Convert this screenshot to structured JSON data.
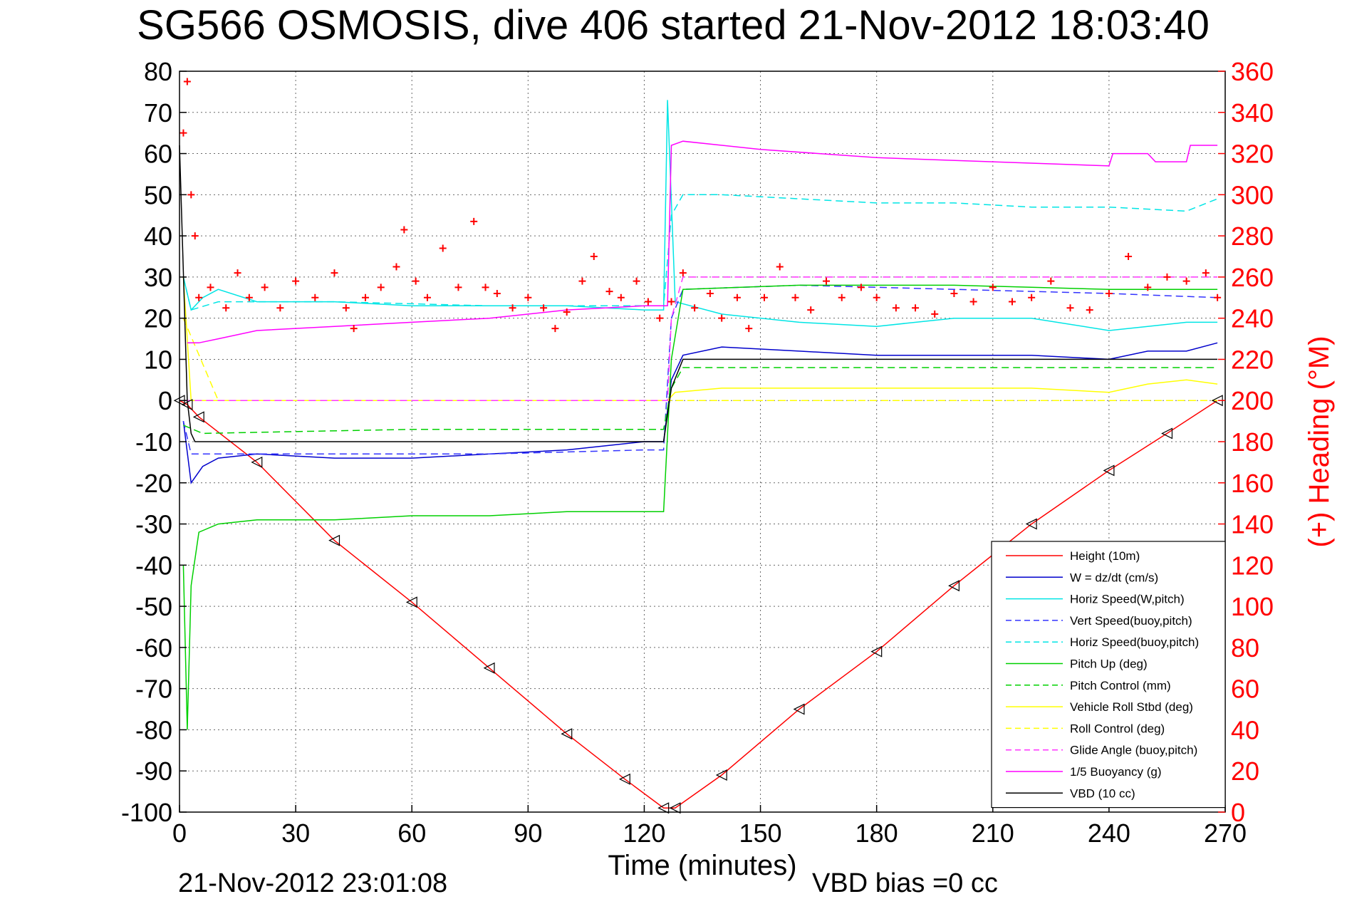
{
  "chart_data": {
    "type": "line",
    "title": "SG566 OSMOSIS, dive 406 started 21-Nov-2012 18:03:40",
    "xlabel": "Time (minutes)",
    "ylabel": "",
    "y2label": "(+) Heading (°M)",
    "xlim": [
      0,
      270
    ],
    "ylim": [
      -100,
      80
    ],
    "y2lim": [
      0,
      360
    ],
    "xticks": [
      0,
      30,
      60,
      90,
      120,
      150,
      180,
      210,
      240,
      270
    ],
    "yticks": [
      -100,
      -90,
      -80,
      -70,
      -60,
      -50,
      -40,
      -30,
      -20,
      -10,
      0,
      10,
      20,
      30,
      40,
      50,
      60,
      70,
      80
    ],
    "y2ticks": [
      0,
      20,
      40,
      60,
      80,
      100,
      120,
      140,
      160,
      180,
      200,
      220,
      240,
      260,
      280,
      300,
      320,
      340,
      360
    ],
    "grid": true,
    "legend_position": "lower-right",
    "footer_left": "21-Nov-2012 23:01:08",
    "footer_right": "VBD bias =0 cc",
    "series": [
      {
        "name": "Height (10m)",
        "color": "#ff0000",
        "style": "solid",
        "x": [
          0,
          2,
          5,
          20,
          40,
          60,
          80,
          100,
          115,
          125,
          128,
          140,
          160,
          180,
          200,
          220,
          240,
          255,
          268
        ],
        "y": [
          0,
          -1,
          -4,
          -15,
          -34,
          -49,
          -65,
          -81,
          -92,
          -99,
          -99,
          -91,
          -75,
          -61,
          -45,
          -30,
          -17,
          -8,
          0
        ]
      },
      {
        "name": "W = dz/dt (cm/s)",
        "color": "#0000cc",
        "style": "solid",
        "x": [
          1,
          3,
          6,
          10,
          20,
          40,
          60,
          80,
          100,
          120,
          125,
          127,
          130,
          140,
          160,
          180,
          200,
          220,
          240,
          250,
          260,
          268
        ],
        "y": [
          -5,
          -20,
          -16,
          -14,
          -13,
          -14,
          -14,
          -13,
          -12,
          -10,
          -10,
          5,
          11,
          13,
          12,
          11,
          11,
          11,
          10,
          12,
          12,
          14
        ]
      },
      {
        "name": "Horiz Speed(W,pitch)",
        "color": "#00e5e5",
        "style": "solid",
        "x": [
          1,
          3,
          6,
          10,
          20,
          40,
          60,
          80,
          100,
          120,
          125,
          126,
          128,
          140,
          160,
          180,
          200,
          220,
          240,
          250,
          260,
          268
        ],
        "y": [
          30,
          22,
          25,
          27,
          24,
          24,
          23,
          23,
          23,
          22,
          22,
          73,
          24,
          21,
          19,
          18,
          20,
          20,
          17,
          18,
          19,
          19
        ]
      },
      {
        "name": "Vert Speed(buoy,pitch)",
        "color": "#3333ff",
        "style": "dashed",
        "x": [
          1,
          3,
          10,
          40,
          80,
          120,
          125,
          127,
          130,
          160,
          200,
          240,
          268
        ],
        "y": [
          -5,
          -13,
          -13,
          -13,
          -13,
          -12,
          -12,
          20,
          27,
          28,
          27,
          26,
          25
        ]
      },
      {
        "name": "Horiz Speed(buoy,pitch)",
        "color": "#00e5e5",
        "style": "dashed",
        "x": [
          1,
          3,
          10,
          40,
          80,
          120,
          125,
          127,
          130,
          140,
          160,
          180,
          200,
          220,
          240,
          260,
          268
        ],
        "y": [
          30,
          22,
          24,
          24,
          23,
          23,
          23,
          45,
          50,
          50,
          49,
          48,
          48,
          47,
          47,
          46,
          49
        ]
      },
      {
        "name": "Pitch Up (deg)",
        "color": "#00d000",
        "style": "solid",
        "x": [
          1,
          2,
          3,
          5,
          10,
          20,
          40,
          60,
          80,
          100,
          120,
          125,
          127,
          130,
          160,
          200,
          240,
          268
        ],
        "y": [
          -40,
          -80,
          -45,
          -32,
          -30,
          -29,
          -29,
          -28,
          -28,
          -27,
          -27,
          -27,
          10,
          27,
          28,
          28,
          27,
          27
        ]
      },
      {
        "name": "Pitch Control (mm)",
        "color": "#00d000",
        "style": "dashed",
        "x": [
          1,
          6,
          60,
          125,
          127,
          130,
          268
        ],
        "y": [
          -6,
          -8,
          -7,
          -7,
          3,
          8,
          8
        ]
      },
      {
        "name": "Vehicle Roll Stbd (deg)",
        "color": "#ffff00",
        "style": "solid",
        "x": [
          1,
          3,
          6,
          10,
          20,
          40,
          60,
          80,
          100,
          120,
          126,
          128,
          140,
          160,
          180,
          200,
          220,
          240,
          250,
          260,
          268
        ],
        "y": [
          30,
          0,
          0,
          0,
          0,
          0,
          0,
          0,
          0,
          0,
          0,
          2,
          3,
          3,
          3,
          3,
          3,
          2,
          4,
          5,
          4
        ]
      },
      {
        "name": "Roll Control (deg)",
        "color": "#ffff00",
        "style": "dashed",
        "x": [
          1,
          10,
          60,
          120,
          126,
          130,
          200,
          268
        ],
        "y": [
          20,
          0,
          0,
          0,
          0,
          0,
          0,
          0
        ]
      },
      {
        "name": "Glide Angle (buoy,pitch)",
        "color": "#ff33ff",
        "style": "dashed",
        "x": [
          1,
          10,
          60,
          120,
          126,
          127,
          130,
          268
        ],
        "y": [
          0,
          0,
          0,
          0,
          0,
          20,
          30,
          30
        ]
      },
      {
        "name": "1/5 Buoyancy (g)",
        "color": "#ff00ff",
        "style": "solid",
        "x": [
          2,
          5,
          10,
          20,
          40,
          60,
          80,
          100,
          120,
          126,
          127,
          130,
          150,
          180,
          210,
          240,
          241,
          250,
          252,
          260,
          261,
          268
        ],
        "y": [
          14,
          14,
          15,
          17,
          18,
          19,
          20,
          22,
          23,
          23,
          62,
          63,
          61,
          59,
          58,
          57,
          60,
          60,
          58,
          58,
          62,
          62
        ]
      },
      {
        "name": "VBD (10 cc)",
        "color": "#000000",
        "style": "solid",
        "x": [
          0,
          2,
          3,
          4,
          20,
          60,
          100,
          125,
          127,
          130,
          200,
          268
        ],
        "y": [
          62,
          0,
          -8,
          -10,
          -10,
          -10,
          -10,
          -10,
          3,
          10,
          10,
          10
        ]
      }
    ],
    "heading_series": {
      "name": "Heading (+)",
      "color": "#ff0000",
      "marker": "+",
      "x": [
        1,
        2,
        3,
        4,
        5,
        8,
        12,
        15,
        18,
        22,
        26,
        30,
        35,
        40,
        43,
        45,
        48,
        52,
        56,
        58,
        61,
        64,
        68,
        72,
        76,
        79,
        82,
        86,
        90,
        94,
        97,
        100,
        104,
        107,
        111,
        114,
        118,
        121,
        124,
        127,
        130,
        133,
        137,
        140,
        144,
        147,
        151,
        155,
        159,
        163,
        167,
        171,
        176,
        180,
        185,
        190,
        195,
        200,
        205,
        210,
        215,
        220,
        225,
        230,
        235,
        240,
        245,
        250,
        255,
        260,
        265,
        268
      ],
      "y": [
        330,
        355,
        300,
        280,
        250,
        255,
        245,
        262,
        250,
        255,
        245,
        258,
        250,
        262,
        245,
        235,
        250,
        255,
        265,
        283,
        258,
        250,
        274,
        255,
        287,
        255,
        252,
        245,
        250,
        245,
        235,
        243,
        258,
        270,
        253,
        250,
        258,
        248,
        240,
        248,
        262,
        245,
        252,
        240,
        250,
        235,
        250,
        265,
        250,
        244,
        258,
        250,
        255,
        250,
        245,
        245,
        242,
        252,
        248,
        255,
        248,
        250,
        258,
        245,
        244,
        252,
        270,
        255,
        260,
        258,
        262,
        250
      ]
    }
  }
}
